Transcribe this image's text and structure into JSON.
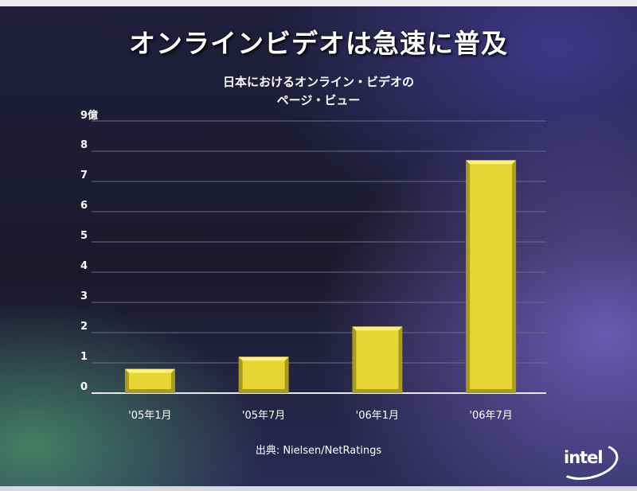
{
  "title": "オンラインビデオは急速に普及",
  "subtitle_line1": "日本におけるオンライン・ビデオの",
  "subtitle_line2": "ページ・ビュー",
  "unit_label": "9億",
  "source": "出典: Nielsen/NetRatings",
  "logo_text": "intel",
  "colors": {
    "bar": "#e6d533",
    "bar_dark": "#a99b1e",
    "bar_light": "#fff27a",
    "grid": "#6a6a8a"
  },
  "chart_data": {
    "type": "bar",
    "categories": [
      "'05年1月",
      "'05年7月",
      "'06年1月",
      "'06年7月"
    ],
    "values": [
      0.8,
      1.2,
      2.2,
      7.7
    ],
    "ylim": [
      0,
      9
    ],
    "yticks": [
      "0",
      "1",
      "2",
      "3",
      "4",
      "5",
      "6",
      "7",
      "8"
    ],
    "unit": "億",
    "grid": true
  }
}
